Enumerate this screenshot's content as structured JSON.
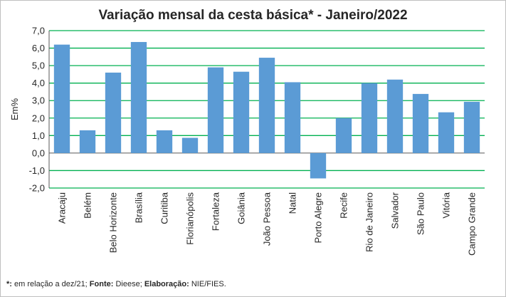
{
  "chart_data": {
    "type": "bar",
    "title": "Variação  mensal da cesta básica* - Janeiro/2022",
    "ylabel": "Em%",
    "xlabel": "",
    "ylim": [
      -2.0,
      7.0
    ],
    "yticks": [
      "7,0",
      "6,0",
      "5,0",
      "4,0",
      "3,0",
      "2,0",
      "1,0",
      "0,0",
      "-1,0",
      "-2,0"
    ],
    "ytick_values": [
      7,
      6,
      5,
      4,
      3,
      2,
      1,
      0,
      -1,
      -2
    ],
    "categories": [
      "Aracaju",
      "Belém",
      "Belo Horizonte",
      "Brasília",
      "Curitiba",
      "Florianópolis",
      "Fortaleza",
      "Goiânia",
      "João Pessoa",
      "Natal",
      "Porto Alegre",
      "Recife",
      "Rio de Janeiro",
      "Salvador",
      "São Paulo",
      "Vitória",
      "Campo Grande"
    ],
    "values": [
      6.2,
      1.3,
      4.6,
      6.35,
      1.3,
      0.87,
      4.9,
      4.65,
      5.45,
      4.05,
      -1.45,
      2.0,
      4.0,
      4.2,
      3.38,
      2.33,
      2.93
    ],
    "bar_color": "#5b9bd5",
    "grid_color": "#00b050",
    "grid": true,
    "legend": "none"
  },
  "footnote": {
    "part1_bold": "*:",
    "part1": " em relação a dez/21; ",
    "part2_bold": "Fonte:",
    "part2": " Dieese; ",
    "part3_bold": "Elaboração:",
    "part3": " NIE/FIES."
  }
}
